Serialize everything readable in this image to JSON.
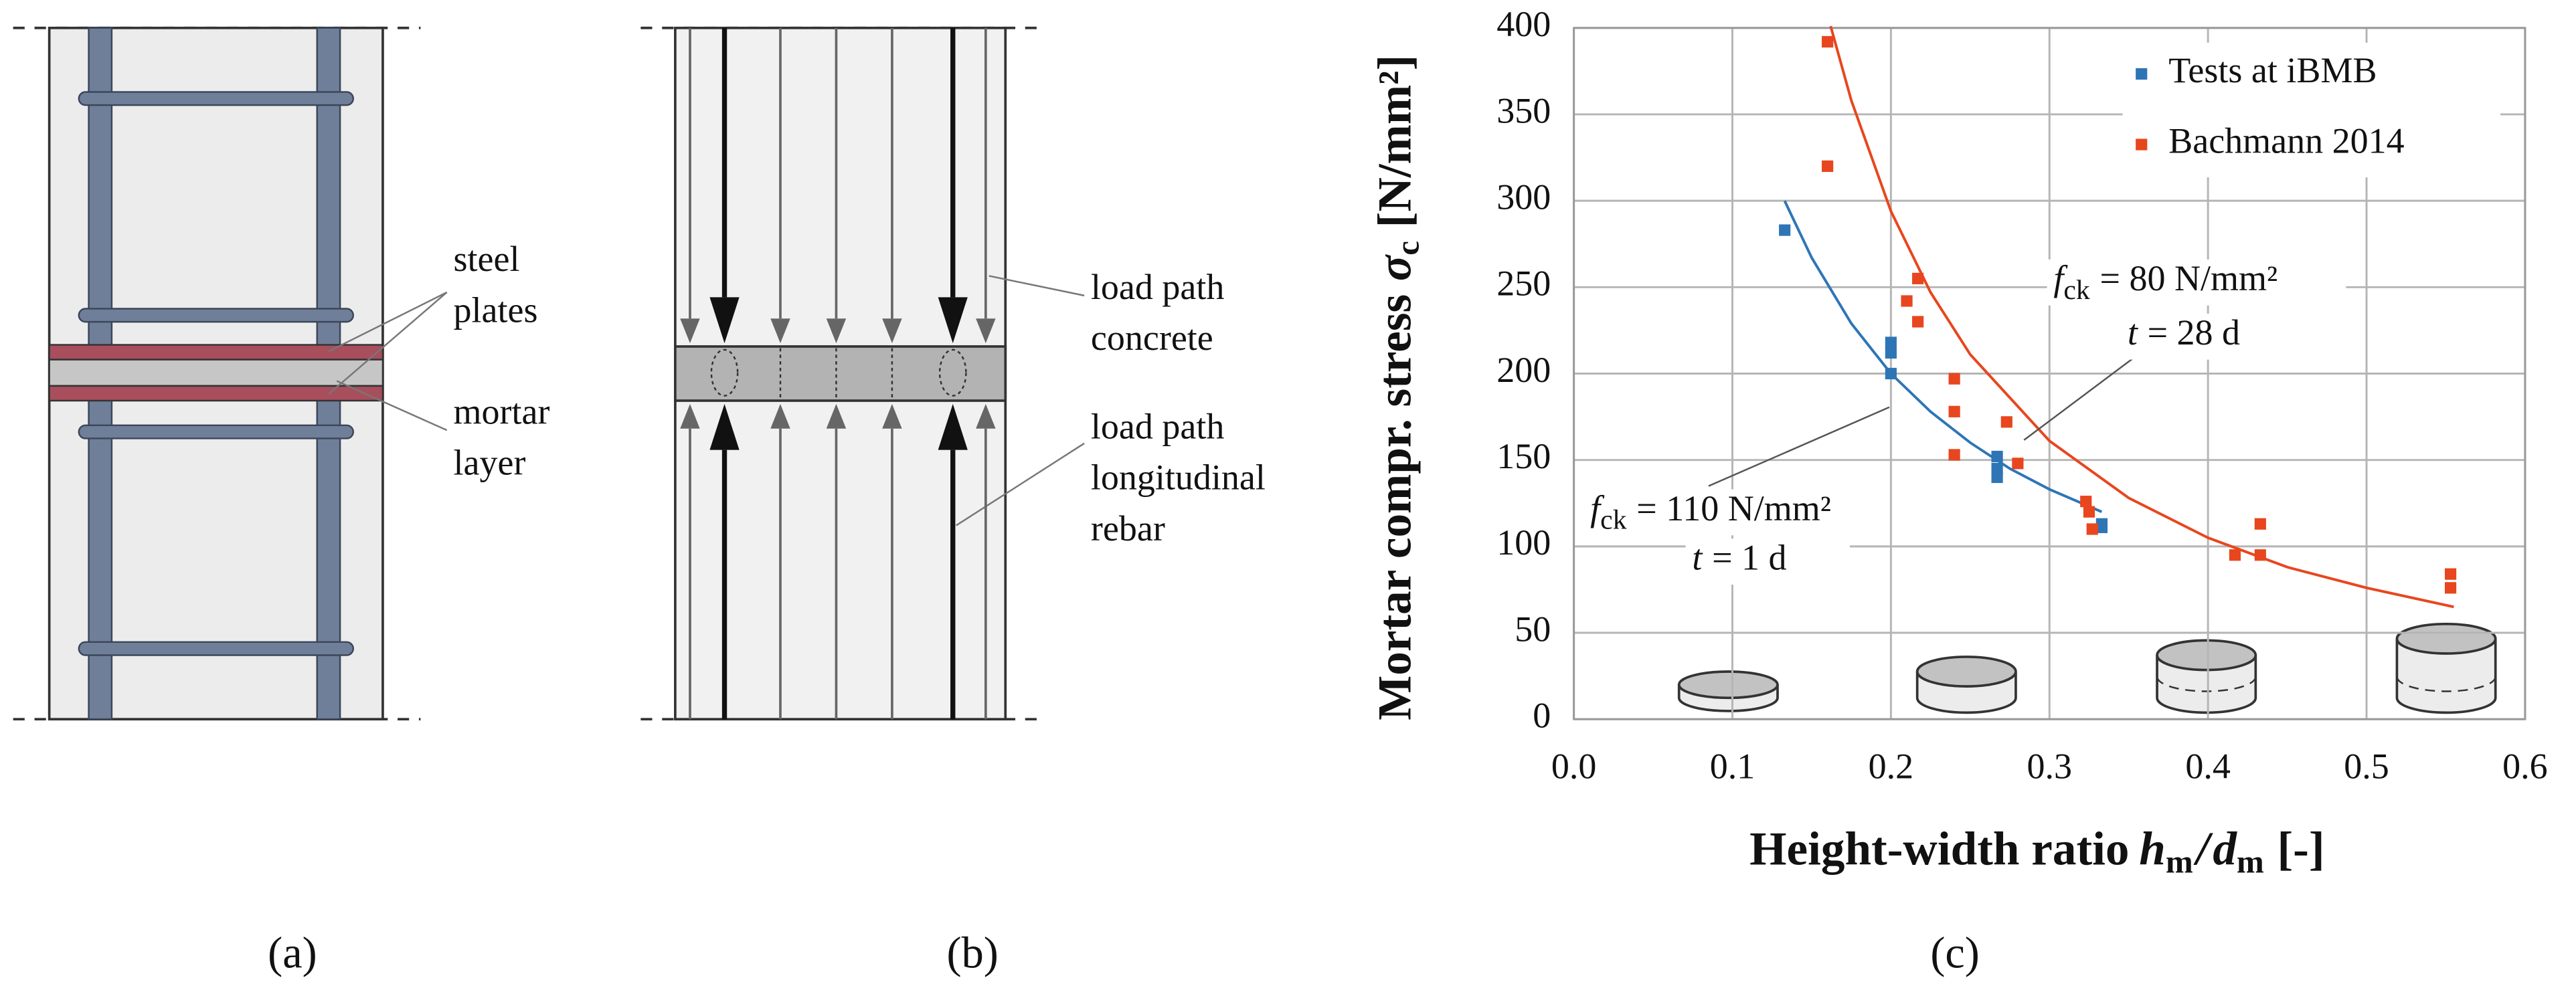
{
  "chart_data": {
    "type": "scatter",
    "panel_label": "(c)",
    "x_label": {
      "text": "Height-width ratio",
      "symbol": "h",
      "subscript": "m",
      "separator": "/",
      "symbol2": "d",
      "subscript2": "m",
      "unit": "[-]"
    },
    "y_label": {
      "text": "Mortar compr. stress",
      "symbol": "σ",
      "subscript": "c",
      "unit": "[N/mm²]"
    },
    "xlim": [
      0,
      0.6
    ],
    "xticks": [
      {
        "value": 0,
        "label": "0.0"
      },
      0.1,
      0.2,
      0.3,
      0.4,
      0.5,
      0.6
    ],
    "ylim": [
      0,
      400
    ],
    "yticks": [
      0,
      50,
      100,
      150,
      200,
      250,
      300,
      350,
      400
    ],
    "grid": true,
    "legend": "top-right",
    "series": [
      {
        "name": "Tests at iBMB",
        "color": "#2e75b6",
        "x": [
          0.133,
          0.2,
          0.2,
          0.2,
          0.267,
          0.267,
          0.267,
          0.333,
          0.333
        ],
        "values": [
          283,
          200,
          212,
          218,
          152,
          145,
          140,
          113,
          111
        ],
        "trend_x": [
          0.133,
          0.15,
          0.175,
          0.2,
          0.225,
          0.25,
          0.275,
          0.3,
          0.333
        ],
        "trend_values": [
          300,
          267,
          229,
          200,
          178,
          160,
          145,
          133,
          120
        ]
      },
      {
        "name": "Bachmann 2014",
        "color": "#e8461e",
        "x": [
          0.16,
          0.16,
          0.21,
          0.217,
          0.217,
          0.24,
          0.24,
          0.24,
          0.273,
          0.28,
          0.323,
          0.325,
          0.327,
          0.417,
          0.433,
          0.433,
          0.553,
          0.553
        ],
        "values": [
          392,
          320,
          242,
          255,
          230,
          197,
          178,
          153,
          172,
          148,
          126,
          120,
          110,
          95,
          113,
          95,
          84,
          76
        ],
        "trend_x": [
          0.162,
          0.175,
          0.2,
          0.225,
          0.25,
          0.3,
          0.35,
          0.4,
          0.45,
          0.5,
          0.555
        ],
        "trend_values": [
          401,
          358,
          294,
          247,
          211,
          161,
          128,
          105,
          88,
          76,
          65
        ]
      }
    ],
    "annotations": [
      {
        "symbol": "f",
        "subscript": "ck",
        "text": "= 80 N/mm²"
      },
      {
        "symbol": "t",
        "text": "= 28 d"
      },
      {
        "symbol": "f",
        "subscript": "ck",
        "text": "= 110 N/mm²"
      },
      {
        "symbol": "t",
        "text": "= 1 d"
      }
    ]
  },
  "diagrams": [
    {
      "panel_label": "(a)",
      "labels": [
        {
          "lines": [
            "steel",
            "plates"
          ]
        },
        {
          "lines": [
            "mortar",
            "layer"
          ]
        }
      ]
    },
    {
      "panel_label": "(b)",
      "labels": [
        {
          "lines": [
            "load path",
            "concrete"
          ]
        },
        {
          "lines": [
            "load path",
            "longitudinal",
            "rebar"
          ]
        }
      ]
    }
  ]
}
